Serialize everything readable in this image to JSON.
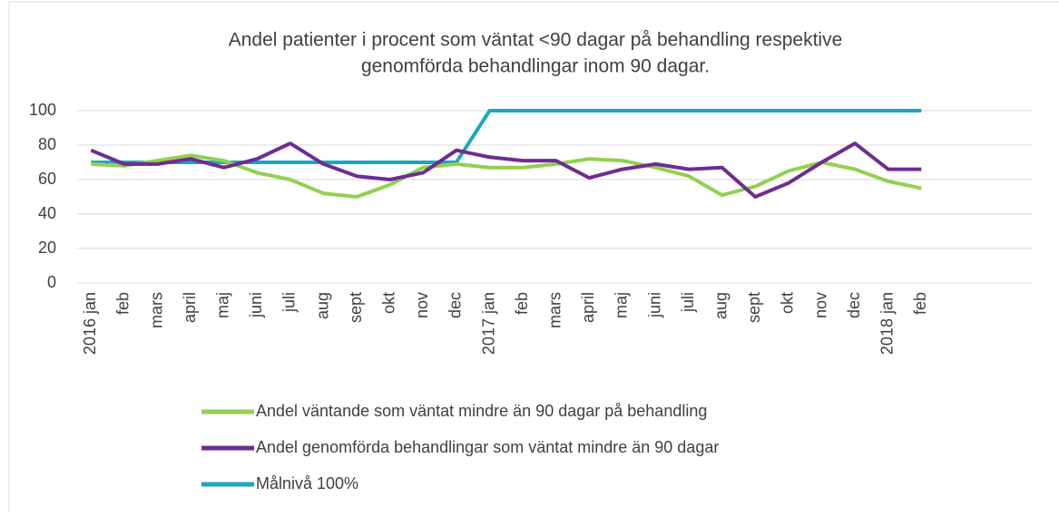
{
  "chart_data": {
    "type": "line",
    "title": [
      "Andel patienter i procent som väntat <90 dagar på behandling respektive",
      "genomförda behandlingar inom 90 dagar."
    ],
    "categories": [
      "2016 jan",
      "feb",
      "mars",
      "april",
      "maj",
      "juni",
      "juli",
      "aug",
      "sept",
      "okt",
      "nov",
      "dec",
      "2017 jan",
      "feb",
      "mars",
      "april",
      "maj",
      "juni",
      "juli",
      "aug",
      "sept",
      "okt",
      "nov",
      "dec",
      "2018 jan",
      "feb"
    ],
    "series": [
      {
        "name": "Andel väntande som väntat mindre än 90 dagar på behandling",
        "color": "#92d050",
        "values": [
          69,
          68,
          71,
          74,
          71,
          64,
          60,
          52,
          50,
          57,
          67,
          69,
          67,
          67,
          69,
          72,
          71,
          67,
          62,
          51,
          56,
          65,
          70,
          66,
          59,
          55
        ]
      },
      {
        "name": "Andel genomförda behandlingar som väntat mindre än 90 dagar",
        "color": "#6f2c91",
        "values": [
          77,
          69,
          69,
          72,
          67,
          72,
          81,
          69,
          62,
          60,
          64,
          77,
          73,
          71,
          71,
          61,
          66,
          69,
          66,
          67,
          50,
          58,
          70,
          81,
          66,
          66
        ]
      },
      {
        "name": "Målnivå 100%",
        "color": "#1aa6c4",
        "values": [
          70,
          70,
          70,
          70,
          70,
          70,
          70,
          70,
          70,
          70,
          70,
          70,
          100,
          100,
          100,
          100,
          100,
          100,
          100,
          100,
          100,
          100,
          100,
          100,
          100,
          100
        ]
      }
    ],
    "ylim": [
      0,
      100
    ],
    "yticks": [
      0,
      20,
      40,
      60,
      80,
      100
    ],
    "grid": true,
    "legend": "bottom"
  }
}
